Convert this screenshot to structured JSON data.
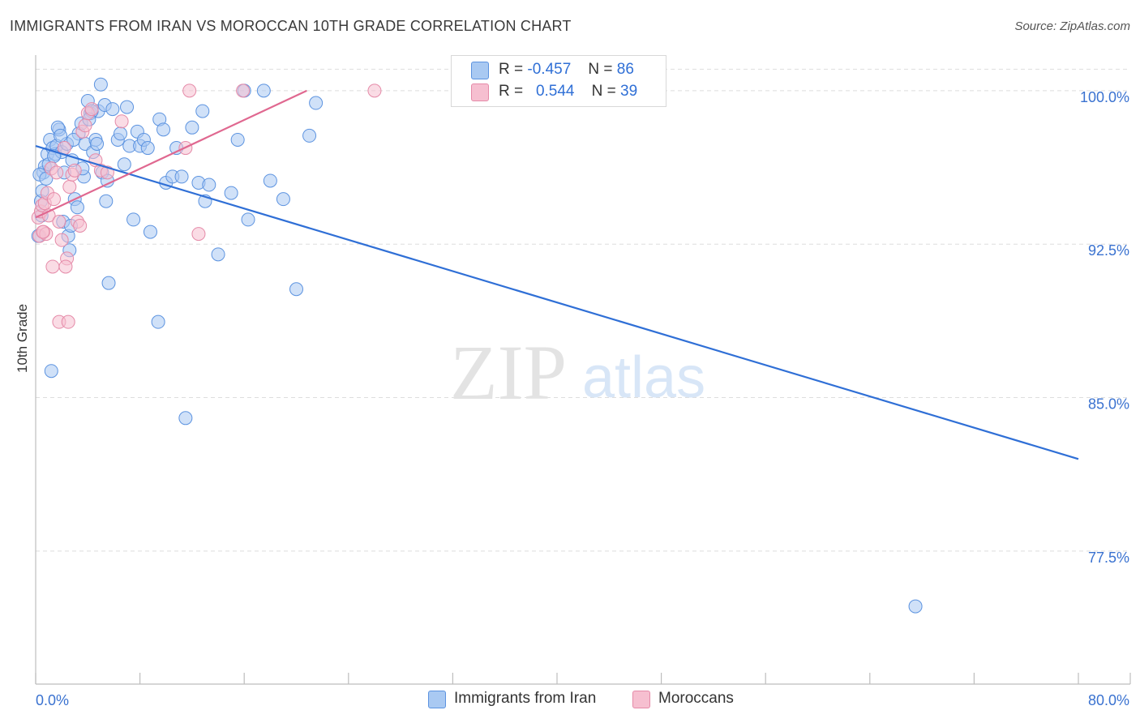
{
  "title": "IMMIGRANTS FROM IRAN VS MOROCCAN 10TH GRADE CORRELATION CHART",
  "source": "Source: ZipAtlas.com",
  "watermark": {
    "zip": "ZIP",
    "atlas": "atlas"
  },
  "legend": {
    "rows": [
      {
        "r_label": "R =",
        "r_value": "-0.457",
        "n_label": "N =",
        "n_value": "86",
        "color": "#a9c9f2"
      },
      {
        "r_label": "R =",
        "r_value": "0.544",
        "n_label": "N =",
        "n_value": "39",
        "color": "#f6bfd0"
      }
    ]
  },
  "bottom_legend": [
    {
      "label": "Immigrants from Iran",
      "color": "#a9c9f2"
    },
    {
      "label": "Moroccans",
      "color": "#f6bfd0"
    }
  ],
  "colors": {
    "blue_fill": "#a9c9f2",
    "blue_stroke": "#5c93e0",
    "blue_line": "#2f6fd6",
    "pink_fill": "#f6bfd0",
    "pink_stroke": "#e58aa8",
    "pink_line": "#e06890",
    "grid": "#dddddd",
    "axis": "#bdbdbd",
    "tick_text": "#3a72d0"
  },
  "chart_data": {
    "type": "scatter",
    "title": "IMMIGRANTS FROM IRAN VS MOROCCAN 10TH GRADE CORRELATION CHART",
    "xlabel": "",
    "ylabel": "10th Grade",
    "xlim": [
      0,
      80
    ],
    "ylim": [
      71,
      101.5
    ],
    "x_ticks": [
      "0.0%",
      "80.0%"
    ],
    "y_ticks": [
      {
        "value": 100.0,
        "label": "100.0%"
      },
      {
        "value": 92.5,
        "label": "92.5%"
      },
      {
        "value": 85.0,
        "label": "85.0%"
      },
      {
        "value": 77.5,
        "label": "77.5%"
      }
    ],
    "grid": true,
    "legend_placement": "top-center",
    "series": [
      {
        "name": "Immigrants from Iran",
        "trendline": {
          "x": [
            0,
            80
          ],
          "y": [
            97.3,
            82.0
          ]
        },
        "points": [
          [
            0.2,
            92.9
          ],
          [
            0.4,
            94.6
          ],
          [
            0.5,
            95.1
          ],
          [
            0.6,
            96.0
          ],
          [
            0.7,
            96.3
          ],
          [
            0.9,
            96.9
          ],
          [
            1.0,
            96.4
          ],
          [
            1.1,
            97.6
          ],
          [
            1.3,
            97.2
          ],
          [
            1.5,
            96.9
          ],
          [
            1.6,
            97.3
          ],
          [
            1.8,
            98.1
          ],
          [
            2.0,
            97.0
          ],
          [
            2.2,
            96.0
          ],
          [
            2.4,
            97.4
          ],
          [
            2.5,
            92.9
          ],
          [
            2.6,
            92.2
          ],
          [
            2.8,
            96.6
          ],
          [
            3.0,
            94.7
          ],
          [
            3.2,
            94.3
          ],
          [
            3.3,
            97.9
          ],
          [
            3.5,
            98.4
          ],
          [
            3.7,
            95.8
          ],
          [
            3.8,
            97.4
          ],
          [
            4.0,
            99.5
          ],
          [
            4.2,
            98.9
          ],
          [
            4.4,
            97.0
          ],
          [
            4.6,
            97.6
          ],
          [
            4.8,
            99.0
          ],
          [
            5.0,
            100.3
          ],
          [
            5.1,
            96.0
          ],
          [
            5.3,
            99.3
          ],
          [
            5.4,
            94.6
          ],
          [
            5.5,
            95.6
          ],
          [
            5.6,
            90.6
          ],
          [
            6.3,
            97.6
          ],
          [
            6.8,
            96.4
          ],
          [
            7.0,
            99.2
          ],
          [
            7.2,
            97.3
          ],
          [
            7.5,
            93.7
          ],
          [
            7.8,
            98.0
          ],
          [
            8.0,
            97.3
          ],
          [
            8.3,
            97.6
          ],
          [
            8.6,
            97.2
          ],
          [
            9.5,
            98.6
          ],
          [
            9.8,
            98.1
          ],
          [
            10.0,
            95.5
          ],
          [
            10.5,
            95.8
          ],
          [
            10.8,
            97.2
          ],
          [
            11.2,
            95.8
          ],
          [
            11.5,
            84.0
          ],
          [
            12.0,
            98.2
          ],
          [
            12.5,
            95.5
          ],
          [
            13.0,
            94.6
          ],
          [
            13.3,
            95.4
          ],
          [
            14.0,
            92.0
          ],
          [
            15.0,
            95.0
          ],
          [
            15.5,
            97.6
          ],
          [
            16.0,
            100.0
          ],
          [
            16.3,
            93.7
          ],
          [
            17.5,
            100.0
          ],
          [
            18.0,
            95.6
          ],
          [
            19.0,
            94.7
          ],
          [
            20.0,
            90.3
          ],
          [
            21.0,
            97.8
          ],
          [
            21.5,
            99.4
          ],
          [
            1.2,
            86.3
          ],
          [
            9.4,
            88.7
          ],
          [
            67.5,
            74.8
          ],
          [
            0.3,
            95.9
          ],
          [
            1.7,
            98.2
          ],
          [
            2.1,
            93.6
          ],
          [
            2.9,
            97.6
          ],
          [
            4.3,
            99.0
          ],
          [
            5.9,
            99.1
          ],
          [
            6.5,
            97.9
          ],
          [
            3.6,
            96.2
          ],
          [
            4.7,
            97.4
          ],
          [
            0.8,
            95.7
          ],
          [
            1.9,
            97.8
          ],
          [
            2.7,
            93.4
          ],
          [
            4.1,
            98.6
          ],
          [
            8.8,
            93.1
          ],
          [
            12.8,
            99.0
          ],
          [
            0.45,
            93.9
          ],
          [
            1.4,
            96.8
          ]
        ]
      },
      {
        "name": "Moroccans",
        "trendline": {
          "x": [
            0,
            20.8
          ],
          "y": [
            93.8,
            100.0
          ]
        },
        "points": [
          [
            0.2,
            93.8
          ],
          [
            0.3,
            92.9
          ],
          [
            0.4,
            94.1
          ],
          [
            0.5,
            94.4
          ],
          [
            0.6,
            93.1
          ],
          [
            0.7,
            94.5
          ],
          [
            0.8,
            93.0
          ],
          [
            0.9,
            95.0
          ],
          [
            1.0,
            93.9
          ],
          [
            1.2,
            96.2
          ],
          [
            1.4,
            94.7
          ],
          [
            1.6,
            96.0
          ],
          [
            1.8,
            93.6
          ],
          [
            2.0,
            92.7
          ],
          [
            2.2,
            97.2
          ],
          [
            2.4,
            91.8
          ],
          [
            2.6,
            95.3
          ],
          [
            2.8,
            95.9
          ],
          [
            3.0,
            96.1
          ],
          [
            3.2,
            93.6
          ],
          [
            3.4,
            93.4
          ],
          [
            3.6,
            98.0
          ],
          [
            3.8,
            98.3
          ],
          [
            4.0,
            98.9
          ],
          [
            4.3,
            99.1
          ],
          [
            4.6,
            96.6
          ],
          [
            5.0,
            96.1
          ],
          [
            5.5,
            96.0
          ],
          [
            6.6,
            98.5
          ],
          [
            11.5,
            97.2
          ],
          [
            12.5,
            93.0
          ],
          [
            11.8,
            100.0
          ],
          [
            15.9,
            100.0
          ],
          [
            26.0,
            100.0
          ],
          [
            1.3,
            91.4
          ],
          [
            1.8,
            88.7
          ],
          [
            2.5,
            88.7
          ],
          [
            2.3,
            91.4
          ],
          [
            0.55,
            93.1
          ]
        ]
      }
    ]
  }
}
